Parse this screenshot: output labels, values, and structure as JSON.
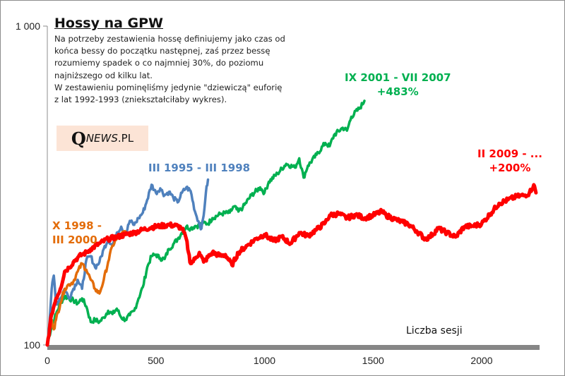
{
  "chart_data": {
    "type": "line",
    "title": "Hossy na GPW",
    "description": [
      "Na potrzeby zestawienia hossę definiujemy jako czas od",
      "końca bessy do początku następnej, zaś przez bessę",
      "rozumiemy spadek o co najmniej 30%, do poziomu",
      "najniższego od kilku lat.",
      "W zestawieniu pominęliśmy jedynie \"dziewiczą\" euforię",
      "z lat 1992-1993 (zniekształciłaby wykres)."
    ],
    "xlabel": "Liczba sesji",
    "ylabel": "",
    "yscale": "log",
    "ylim": [
      100,
      1000
    ],
    "xlim": [
      0,
      2300
    ],
    "y_ticks": [
      {
        "value": 100,
        "label": "100"
      },
      {
        "value": 1000,
        "label": "1 000"
      }
    ],
    "x_ticks": [
      {
        "value": 0,
        "label": "0"
      },
      {
        "value": 500,
        "label": "500"
      },
      {
        "value": 1000,
        "label": "1000"
      },
      {
        "value": 1500,
        "label": "1500"
      },
      {
        "value": 2000,
        "label": "2000"
      }
    ],
    "grid": false,
    "series": [
      {
        "name": "III 1995 - III 1998",
        "color": "#4f81bd",
        "annotation": [
          "III 1995 - III 1998"
        ],
        "points": [
          [
            0,
            100
          ],
          [
            10,
            118
          ],
          [
            20,
            150
          ],
          [
            30,
            165
          ],
          [
            40,
            135
          ],
          [
            60,
            140
          ],
          [
            80,
            150
          ],
          [
            100,
            140
          ],
          [
            120,
            150
          ],
          [
            140,
            160
          ],
          [
            160,
            150
          ],
          [
            180,
            185
          ],
          [
            200,
            190
          ],
          [
            220,
            175
          ],
          [
            240,
            182
          ],
          [
            260,
            200
          ],
          [
            280,
            215
          ],
          [
            300,
            205
          ],
          [
            320,
            225
          ],
          [
            340,
            235
          ],
          [
            360,
            222
          ],
          [
            380,
            245
          ],
          [
            400,
            238
          ],
          [
            420,
            250
          ],
          [
            440,
            260
          ],
          [
            460,
            285
          ],
          [
            480,
            318
          ],
          [
            500,
            300
          ],
          [
            520,
            310
          ],
          [
            540,
            295
          ],
          [
            560,
            302
          ],
          [
            580,
            290
          ],
          [
            600,
            280
          ],
          [
            620,
            300
          ],
          [
            640,
            312
          ],
          [
            660,
            304
          ],
          [
            680,
            262
          ],
          [
            700,
            240
          ],
          [
            710,
            232
          ],
          [
            720,
            255
          ],
          [
            730,
            300
          ],
          [
            740,
            330
          ]
        ]
      },
      {
        "name": "X 1998 - III 2000",
        "color": "#e36c09",
        "annotation": [
          "X 1998 -",
          "III 2000"
        ],
        "points": [
          [
            0,
            100
          ],
          [
            10,
            112
          ],
          [
            20,
            120
          ],
          [
            30,
            112
          ],
          [
            40,
            120
          ],
          [
            60,
            135
          ],
          [
            80,
            150
          ],
          [
            100,
            155
          ],
          [
            120,
            158
          ],
          [
            140,
            170
          ],
          [
            160,
            180
          ],
          [
            180,
            172
          ],
          [
            200,
            160
          ],
          [
            220,
            150
          ],
          [
            240,
            145
          ],
          [
            260,
            160
          ],
          [
            280,
            182
          ],
          [
            300,
            205
          ],
          [
            320,
            215
          ],
          [
            340,
            222
          ],
          [
            360,
            227
          ]
        ]
      },
      {
        "name": "IX 2001 - VII 2007",
        "color": "#00b050",
        "annotation": [
          "IX 2001 - VII 2007",
          "+483%"
        ],
        "points": [
          [
            0,
            100
          ],
          [
            20,
            115
          ],
          [
            40,
            125
          ],
          [
            60,
            135
          ],
          [
            80,
            142
          ],
          [
            100,
            140
          ],
          [
            120,
            138
          ],
          [
            140,
            135
          ],
          [
            160,
            140
          ],
          [
            180,
            132
          ],
          [
            200,
            118
          ],
          [
            220,
            120
          ],
          [
            240,
            118
          ],
          [
            260,
            122
          ],
          [
            280,
            128
          ],
          [
            300,
            125
          ],
          [
            320,
            130
          ],
          [
            340,
            122
          ],
          [
            360,
            120
          ],
          [
            380,
            124
          ],
          [
            400,
            128
          ],
          [
            420,
            140
          ],
          [
            440,
            152
          ],
          [
            460,
            175
          ],
          [
            480,
            190
          ],
          [
            500,
            192
          ],
          [
            520,
            187
          ],
          [
            540,
            186
          ],
          [
            560,
            200
          ],
          [
            580,
            207
          ],
          [
            600,
            215
          ],
          [
            620,
            225
          ],
          [
            640,
            235
          ],
          [
            660,
            232
          ],
          [
            680,
            236
          ],
          [
            700,
            237
          ],
          [
            720,
            242
          ],
          [
            740,
            240
          ],
          [
            760,
            250
          ],
          [
            800,
            258
          ],
          [
            840,
            260
          ],
          [
            860,
            272
          ],
          [
            880,
            262
          ],
          [
            900,
            270
          ],
          [
            940,
            295
          ],
          [
            980,
            312
          ],
          [
            1000,
            300
          ],
          [
            1020,
            325
          ],
          [
            1060,
            345
          ],
          [
            1100,
            370
          ],
          [
            1140,
            360
          ],
          [
            1160,
            385
          ],
          [
            1180,
            335
          ],
          [
            1200,
            365
          ],
          [
            1240,
            395
          ],
          [
            1280,
            430
          ],
          [
            1300,
            420
          ],
          [
            1320,
            455
          ],
          [
            1360,
            480
          ],
          [
            1380,
            470
          ],
          [
            1400,
            520
          ],
          [
            1440,
            555
          ],
          [
            1460,
            583
          ]
        ]
      },
      {
        "name": "II 2009 - ...",
        "color": "#ff0000",
        "annotation": [
          "II 2009 - ...",
          "+200%"
        ],
        "points": [
          [
            0,
            100
          ],
          [
            20,
            125
          ],
          [
            40,
            140
          ],
          [
            60,
            150
          ],
          [
            80,
            170
          ],
          [
            100,
            175
          ],
          [
            120,
            182
          ],
          [
            140,
            188
          ],
          [
            160,
            192
          ],
          [
            180,
            195
          ],
          [
            200,
            200
          ],
          [
            240,
            208
          ],
          [
            280,
            215
          ],
          [
            320,
            218
          ],
          [
            360,
            222
          ],
          [
            400,
            225
          ],
          [
            440,
            230
          ],
          [
            480,
            234
          ],
          [
            520,
            236
          ],
          [
            560,
            238
          ],
          [
            600,
            236
          ],
          [
            620,
            232
          ],
          [
            640,
            215
          ],
          [
            650,
            195
          ],
          [
            660,
            180
          ],
          [
            680,
            186
          ],
          [
            700,
            195
          ],
          [
            720,
            182
          ],
          [
            760,
            195
          ],
          [
            800,
            190
          ],
          [
            820,
            192
          ],
          [
            850,
            178
          ],
          [
            880,
            195
          ],
          [
            920,
            205
          ],
          [
            960,
            215
          ],
          [
            1000,
            222
          ],
          [
            1040,
            212
          ],
          [
            1080,
            218
          ],
          [
            1120,
            208
          ],
          [
            1160,
            225
          ],
          [
            1200,
            220
          ],
          [
            1240,
            230
          ],
          [
            1280,
            242
          ],
          [
            1300,
            255
          ],
          [
            1340,
            258
          ],
          [
            1380,
            250
          ],
          [
            1420,
            256
          ],
          [
            1460,
            250
          ],
          [
            1500,
            255
          ],
          [
            1540,
            262
          ],
          [
            1560,
            255
          ],
          [
            1600,
            248
          ],
          [
            1640,
            242
          ],
          [
            1660,
            240
          ],
          [
            1700,
            228
          ],
          [
            1740,
            215
          ],
          [
            1760,
            218
          ],
          [
            1800,
            232
          ],
          [
            1840,
            225
          ],
          [
            1880,
            218
          ],
          [
            1920,
            235
          ],
          [
            1960,
            236
          ],
          [
            2000,
            240
          ],
          [
            2040,
            258
          ],
          [
            2080,
            278
          ],
          [
            2120,
            285
          ],
          [
            2160,
            292
          ],
          [
            2200,
            295
          ],
          [
            2220,
            300
          ],
          [
            2240,
            318
          ],
          [
            2250,
            300
          ]
        ]
      }
    ],
    "logo": {
      "initial": "Q",
      "rest": "NEWS",
      "suffix": ".PL"
    }
  }
}
